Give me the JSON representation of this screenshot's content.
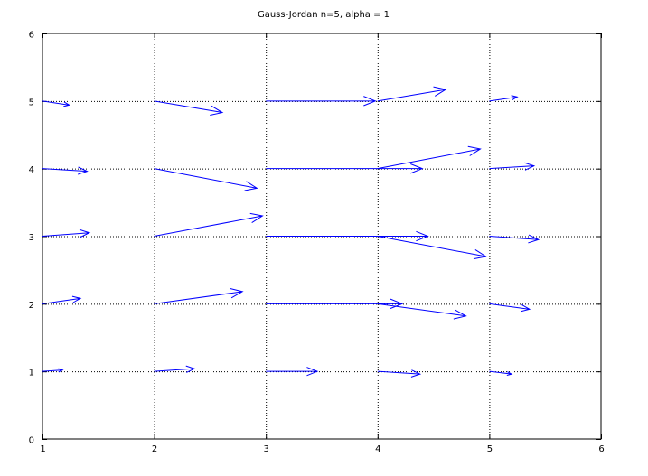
{
  "chart_data": {
    "type": "quiver",
    "title": "Gauss-Jordan n=5, alpha = 1",
    "xlabel": "",
    "ylabel": "",
    "xlim": [
      1,
      6
    ],
    "ylim": [
      0,
      6
    ],
    "xticks": [
      1,
      2,
      3,
      4,
      5,
      6
    ],
    "yticks": [
      0,
      1,
      2,
      3,
      4,
      5,
      6
    ],
    "grid": true,
    "grid_style": "dotted",
    "arrow_color": "#0000ff",
    "vectors": [
      {
        "x": 1,
        "y": 1,
        "u": 0.18,
        "v": 0.02
      },
      {
        "x": 1,
        "y": 2,
        "u": 0.34,
        "v": 0.08
      },
      {
        "x": 1,
        "y": 3,
        "u": 0.42,
        "v": 0.05
      },
      {
        "x": 1,
        "y": 4,
        "u": 0.4,
        "v": -0.04
      },
      {
        "x": 1,
        "y": 5,
        "u": 0.24,
        "v": -0.06
      },
      {
        "x": 2,
        "y": 1,
        "u": 0.36,
        "v": 0.04
      },
      {
        "x": 2,
        "y": 2,
        "u": 0.79,
        "v": 0.18
      },
      {
        "x": 2,
        "y": 3,
        "u": 0.97,
        "v": 0.3
      },
      {
        "x": 2,
        "y": 4,
        "u": 0.92,
        "v": -0.29
      },
      {
        "x": 2,
        "y": 5,
        "u": 0.61,
        "v": -0.17
      },
      {
        "x": 3,
        "y": 1,
        "u": 0.46,
        "v": 0.0
      },
      {
        "x": 3,
        "y": 2,
        "u": 1.22,
        "v": 0.0
      },
      {
        "x": 3,
        "y": 3,
        "u": 1.45,
        "v": 0.0
      },
      {
        "x": 3,
        "y": 4,
        "u": 1.4,
        "v": 0.0
      },
      {
        "x": 3,
        "y": 5,
        "u": 0.98,
        "v": 0.0
      },
      {
        "x": 4,
        "y": 1,
        "u": 0.38,
        "v": -0.04
      },
      {
        "x": 4,
        "y": 2,
        "u": 0.79,
        "v": -0.18
      },
      {
        "x": 4,
        "y": 3,
        "u": 0.97,
        "v": -0.3
      },
      {
        "x": 4,
        "y": 4,
        "u": 0.92,
        "v": 0.29
      },
      {
        "x": 4,
        "y": 5,
        "u": 0.61,
        "v": 0.17
      },
      {
        "x": 5,
        "y": 1,
        "u": 0.2,
        "v": -0.04
      },
      {
        "x": 5,
        "y": 2,
        "u": 0.36,
        "v": -0.08
      },
      {
        "x": 5,
        "y": 3,
        "u": 0.44,
        "v": -0.05
      },
      {
        "x": 5,
        "y": 4,
        "u": 0.4,
        "v": 0.04
      },
      {
        "x": 5,
        "y": 5,
        "u": 0.25,
        "v": 0.06
      }
    ]
  }
}
